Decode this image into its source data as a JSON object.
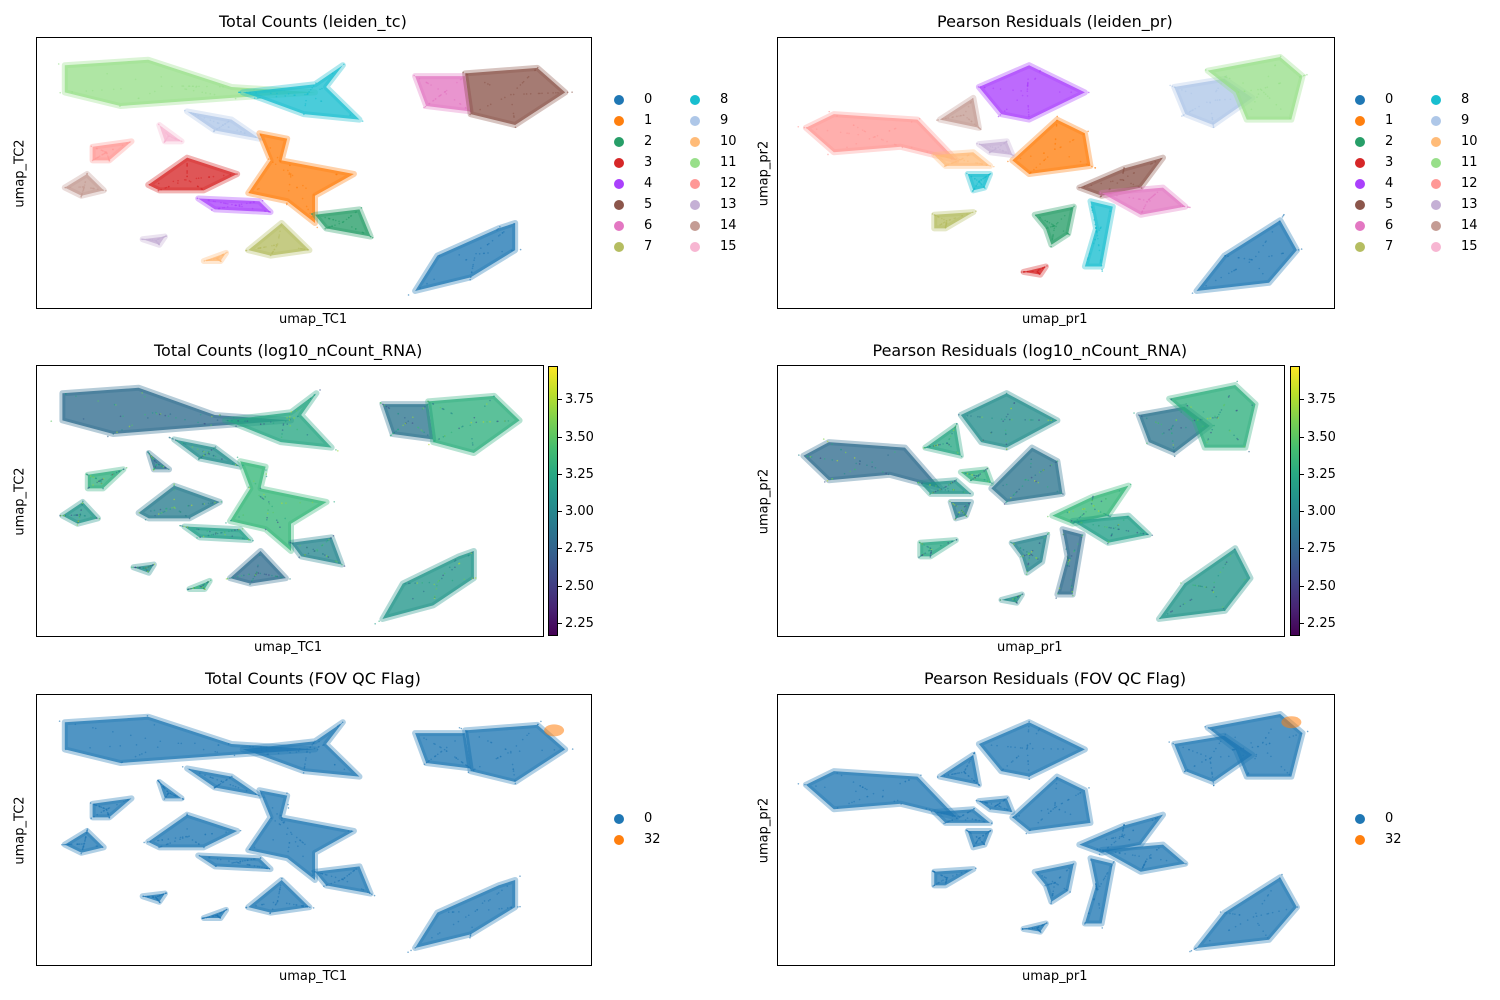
{
  "chart_data": [
    {
      "type": "scatter",
      "id": "tc-leiden",
      "title": "Total Counts (leiden_tc)",
      "xlabel": "umap_TC1",
      "ylabel": "umap_TC2",
      "color_mode": "categorical",
      "legend": {
        "placement": "right",
        "columns": 2,
        "entries": [
          {
            "label": "0",
            "color": "#1f77b4"
          },
          {
            "label": "1",
            "color": "#ff7f0e"
          },
          {
            "label": "2",
            "color": "#279e68"
          },
          {
            "label": "3",
            "color": "#d62728"
          },
          {
            "label": "4",
            "color": "#aa40fc"
          },
          {
            "label": "5",
            "color": "#8c564b"
          },
          {
            "label": "6",
            "color": "#e377c2"
          },
          {
            "label": "7",
            "color": "#b5bd61"
          },
          {
            "label": "8",
            "color": "#17becf"
          },
          {
            "label": "9",
            "color": "#aec7e8"
          },
          {
            "label": "10",
            "color": "#ffbb78"
          },
          {
            "label": "11",
            "color": "#98df8a"
          },
          {
            "label": "12",
            "color": "#ff9896"
          },
          {
            "label": "13",
            "color": "#c5b0d5"
          },
          {
            "label": "14",
            "color": "#c49c94"
          },
          {
            "label": "15",
            "color": "#f7b6d2"
          }
        ]
      },
      "clusters": [
        {
          "label": "11",
          "points": [
            [
              0.05,
              0.1
            ],
            [
              0.2,
              0.08
            ],
            [
              0.35,
              0.18
            ],
            [
              0.5,
              0.2
            ],
            [
              0.35,
              0.22
            ],
            [
              0.15,
              0.25
            ],
            [
              0.05,
              0.2
            ]
          ]
        },
        {
          "label": "8",
          "points": [
            [
              0.37,
              0.2
            ],
            [
              0.5,
              0.17
            ],
            [
              0.55,
              0.1
            ],
            [
              0.52,
              0.18
            ],
            [
              0.58,
              0.3
            ],
            [
              0.48,
              0.28
            ],
            [
              0.4,
              0.22
            ]
          ]
        },
        {
          "label": "9",
          "points": [
            [
              0.27,
              0.27
            ],
            [
              0.35,
              0.3
            ],
            [
              0.4,
              0.37
            ],
            [
              0.32,
              0.34
            ]
          ]
        },
        {
          "label": "15",
          "points": [
            [
              0.22,
              0.32
            ],
            [
              0.26,
              0.38
            ],
            [
              0.23,
              0.38
            ]
          ]
        },
        {
          "label": "12",
          "points": [
            [
              0.1,
              0.4
            ],
            [
              0.17,
              0.38
            ],
            [
              0.13,
              0.45
            ],
            [
              0.1,
              0.45
            ]
          ]
        },
        {
          "label": "14",
          "points": [
            [
              0.05,
              0.55
            ],
            [
              0.09,
              0.5
            ],
            [
              0.12,
              0.56
            ],
            [
              0.08,
              0.58
            ]
          ]
        },
        {
          "label": "3",
          "points": [
            [
              0.2,
              0.54
            ],
            [
              0.27,
              0.44
            ],
            [
              0.36,
              0.5
            ],
            [
              0.3,
              0.56
            ],
            [
              0.22,
              0.56
            ]
          ]
        },
        {
          "label": "1",
          "points": [
            [
              0.4,
              0.35
            ],
            [
              0.45,
              0.37
            ],
            [
              0.44,
              0.45
            ],
            [
              0.57,
              0.5
            ],
            [
              0.5,
              0.58
            ],
            [
              0.5,
              0.68
            ],
            [
              0.45,
              0.6
            ],
            [
              0.38,
              0.57
            ],
            [
              0.42,
              0.45
            ]
          ]
        },
        {
          "label": "4",
          "points": [
            [
              0.29,
              0.59
            ],
            [
              0.4,
              0.6
            ],
            [
              0.42,
              0.64
            ],
            [
              0.32,
              0.63
            ]
          ]
        },
        {
          "label": "2",
          "points": [
            [
              0.5,
              0.65
            ],
            [
              0.58,
              0.63
            ],
            [
              0.6,
              0.73
            ],
            [
              0.52,
              0.7
            ]
          ]
        },
        {
          "label": "7",
          "points": [
            [
              0.38,
              0.78
            ],
            [
              0.44,
              0.68
            ],
            [
              0.49,
              0.78
            ],
            [
              0.42,
              0.8
            ]
          ]
        },
        {
          "label": "10",
          "points": [
            [
              0.3,
              0.82
            ],
            [
              0.34,
              0.79
            ],
            [
              0.33,
              0.82
            ]
          ]
        },
        {
          "label": "13",
          "points": [
            [
              0.19,
              0.74
            ],
            [
              0.23,
              0.73
            ],
            [
              0.22,
              0.76
            ]
          ]
        },
        {
          "label": "6",
          "points": [
            [
              0.68,
              0.14
            ],
            [
              0.77,
              0.14
            ],
            [
              0.78,
              0.27
            ],
            [
              0.7,
              0.25
            ]
          ]
        },
        {
          "label": "5",
          "points": [
            [
              0.77,
              0.13
            ],
            [
              0.9,
              0.11
            ],
            [
              0.95,
              0.2
            ],
            [
              0.86,
              0.32
            ],
            [
              0.78,
              0.28
            ]
          ]
        },
        {
          "label": "0",
          "points": [
            [
              0.68,
              0.93
            ],
            [
              0.72,
              0.8
            ],
            [
              0.83,
              0.7
            ],
            [
              0.86,
              0.68
            ],
            [
              0.86,
              0.78
            ],
            [
              0.78,
              0.88
            ]
          ]
        }
      ]
    },
    {
      "type": "scatter",
      "id": "pr-leiden",
      "title": "Pearson Residuals (leiden_pr)",
      "xlabel": "umap_pr1",
      "ylabel": "umap_pr2",
      "color_mode": "categorical",
      "legend": {
        "placement": "right",
        "columns": 2,
        "entries": [
          {
            "label": "0",
            "color": "#1f77b4"
          },
          {
            "label": "1",
            "color": "#ff7f0e"
          },
          {
            "label": "2",
            "color": "#279e68"
          },
          {
            "label": "3",
            "color": "#d62728"
          },
          {
            "label": "4",
            "color": "#aa40fc"
          },
          {
            "label": "5",
            "color": "#8c564b"
          },
          {
            "label": "6",
            "color": "#e377c2"
          },
          {
            "label": "7",
            "color": "#b5bd61"
          },
          {
            "label": "8",
            "color": "#17becf"
          },
          {
            "label": "9",
            "color": "#aec7e8"
          },
          {
            "label": "10",
            "color": "#ffbb78"
          },
          {
            "label": "11",
            "color": "#98df8a"
          },
          {
            "label": "12",
            "color": "#ff9896"
          },
          {
            "label": "13",
            "color": "#c5b0d5"
          },
          {
            "label": "14",
            "color": "#c49c94"
          },
          {
            "label": "15",
            "color": "#f7b6d2"
          }
        ]
      },
      "clusters": [
        {
          "label": "12",
          "points": [
            [
              0.05,
              0.33
            ],
            [
              0.1,
              0.28
            ],
            [
              0.25,
              0.3
            ],
            [
              0.32,
              0.45
            ],
            [
              0.22,
              0.4
            ],
            [
              0.1,
              0.42
            ]
          ]
        },
        {
          "label": "14",
          "points": [
            [
              0.29,
              0.3
            ],
            [
              0.35,
              0.22
            ],
            [
              0.36,
              0.33
            ]
          ]
        },
        {
          "label": "4",
          "points": [
            [
              0.36,
              0.18
            ],
            [
              0.45,
              0.1
            ],
            [
              0.47,
              0.12
            ],
            [
              0.55,
              0.2
            ],
            [
              0.45,
              0.3
            ],
            [
              0.4,
              0.28
            ]
          ]
        },
        {
          "label": "1",
          "points": [
            [
              0.42,
              0.45
            ],
            [
              0.5,
              0.3
            ],
            [
              0.55,
              0.35
            ],
            [
              0.56,
              0.47
            ],
            [
              0.45,
              0.5
            ]
          ]
        },
        {
          "label": "13",
          "points": [
            [
              0.36,
              0.39
            ],
            [
              0.41,
              0.38
            ],
            [
              0.42,
              0.43
            ],
            [
              0.38,
              0.42
            ]
          ]
        },
        {
          "label": "10",
          "points": [
            [
              0.28,
              0.43
            ],
            [
              0.35,
              0.42
            ],
            [
              0.38,
              0.47
            ],
            [
              0.3,
              0.47
            ]
          ]
        },
        {
          "label": "8",
          "points": [
            [
              0.34,
              0.5
            ],
            [
              0.38,
              0.5
            ],
            [
              0.37,
              0.55
            ],
            [
              0.35,
              0.56
            ]
          ]
        },
        {
          "label": "5",
          "points": [
            [
              0.54,
              0.55
            ],
            [
              0.62,
              0.48
            ],
            [
              0.69,
              0.44
            ],
            [
              0.65,
              0.55
            ],
            [
              0.58,
              0.58
            ]
          ]
        },
        {
          "label": "6",
          "points": [
            [
              0.58,
              0.57
            ],
            [
              0.69,
              0.55
            ],
            [
              0.73,
              0.62
            ],
            [
              0.65,
              0.65
            ]
          ]
        },
        {
          "label": "2",
          "points": [
            [
              0.46,
              0.65
            ],
            [
              0.53,
              0.62
            ],
            [
              0.52,
              0.72
            ],
            [
              0.49,
              0.76
            ],
            [
              0.48,
              0.7
            ]
          ]
        },
        {
          "label": "8",
          "points": [
            [
              0.56,
              0.6
            ],
            [
              0.6,
              0.62
            ],
            [
              0.58,
              0.84
            ],
            [
              0.55,
              0.84
            ],
            [
              0.57,
              0.7
            ]
          ]
        },
        {
          "label": "7",
          "points": [
            [
              0.28,
              0.65
            ],
            [
              0.35,
              0.64
            ],
            [
              0.3,
              0.7
            ],
            [
              0.28,
              0.7
            ]
          ]
        },
        {
          "label": "3",
          "points": [
            [
              0.44,
              0.86
            ],
            [
              0.48,
              0.84
            ],
            [
              0.47,
              0.87
            ]
          ]
        },
        {
          "label": "9",
          "points": [
            [
              0.71,
              0.18
            ],
            [
              0.8,
              0.15
            ],
            [
              0.85,
              0.22
            ],
            [
              0.78,
              0.32
            ],
            [
              0.73,
              0.28
            ]
          ]
        },
        {
          "label": "11",
          "points": [
            [
              0.77,
              0.12
            ],
            [
              0.9,
              0.07
            ],
            [
              0.94,
              0.14
            ],
            [
              0.92,
              0.3
            ],
            [
              0.84,
              0.3
            ],
            [
              0.82,
              0.2
            ]
          ]
        },
        {
          "label": "0",
          "points": [
            [
              0.75,
              0.93
            ],
            [
              0.8,
              0.8
            ],
            [
              0.9,
              0.67
            ],
            [
              0.93,
              0.78
            ],
            [
              0.88,
              0.9
            ]
          ]
        }
      ]
    },
    {
      "type": "scatter",
      "id": "tc-ncount",
      "title": "Total Counts (log10_nCount_RNA)",
      "xlabel": "umap_TC1",
      "ylabel": "umap_TC2",
      "color_mode": "continuous",
      "colormap": "viridis",
      "colorbar": {
        "range": [
          2.17,
          3.98
        ],
        "ticks": [
          "2.25",
          "2.50",
          "2.75",
          "3.00",
          "3.25",
          "3.50",
          "3.75"
        ]
      },
      "same_embedding_as": "tc-leiden"
    },
    {
      "type": "scatter",
      "id": "pr-ncount",
      "title": "Pearson Residuals (log10_nCount_RNA)",
      "xlabel": "umap_pr1",
      "ylabel": "umap_pr2",
      "color_mode": "continuous",
      "colormap": "viridis",
      "colorbar": {
        "range": [
          2.17,
          3.98
        ],
        "ticks": [
          "2.25",
          "2.50",
          "2.75",
          "3.00",
          "3.25",
          "3.50",
          "3.75"
        ]
      },
      "same_embedding_as": "pr-leiden"
    },
    {
      "type": "scatter",
      "id": "tc-fov",
      "title": "Total Counts (FOV QC Flag)",
      "xlabel": "umap_TC1",
      "ylabel": "umap_TC2",
      "color_mode": "categorical",
      "legend": {
        "placement": "right",
        "columns": 1,
        "entries": [
          {
            "label": "0",
            "color": "#1f77b4"
          },
          {
            "label": "32",
            "color": "#ff7f0e"
          }
        ]
      },
      "same_embedding_as": "tc-leiden"
    },
    {
      "type": "scatter",
      "id": "pr-fov",
      "title": "Pearson Residuals (FOV QC Flag)",
      "xlabel": "umap_pr1",
      "ylabel": "umap_pr2",
      "color_mode": "categorical",
      "legend": {
        "placement": "right",
        "columns": 1,
        "entries": [
          {
            "label": "0",
            "color": "#1f77b4"
          },
          {
            "label": "32",
            "color": "#ff7f0e"
          }
        ]
      },
      "same_embedding_as": "pr-leiden"
    }
  ]
}
